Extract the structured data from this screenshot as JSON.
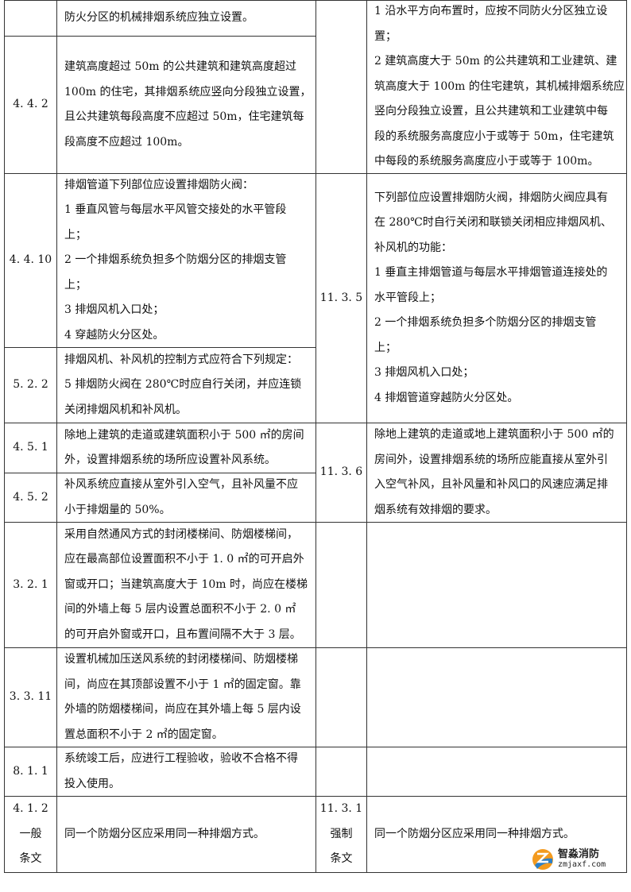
{
  "table": {
    "cells": [
      {
        "lines": []
      },
      {
        "lines": [
          "防火分区的机械排烟系统应独立设置。"
        ]
      },
      {
        "lines": []
      },
      {
        "lines": [
          "1 沿水平方向布置时，应按不同防火分区独立设",
          "置；",
          "2 建筑高度大于 50m 的公共建筑和工业建筑、建",
          "筑高度大于 100m 的住宅建筑，其机械排烟系统应",
          "竖向分段独立设置，且公共建筑和工业建筑中每",
          "段的系统服务高度应小于或等于 50m，住宅建筑",
          "中每段的系统服务高度应小于或等于 100m。"
        ]
      },
      {
        "lines": [
          "4. 4. 2"
        ]
      },
      {
        "lines": [
          "建筑高度超过 50m 的公共建筑和建筑高度超过",
          "100m 的住宅，其排烟系统应竖向分段独立设置，",
          "且公共建筑每段高度不应超过 50m，住宅建筑每",
          "段高度不应超过 100m。"
        ]
      },
      {
        "lines": [
          "4. 4. 10"
        ]
      },
      {
        "lines": [
          "排烟管道下列部位应设置排烟防火阀：",
          "1 垂直风管与每层水平风管交接处的水平管段",
          "上；",
          "2 一个排烟系统负担多个防烟分区的排烟支管",
          "上；",
          "3 排烟风机入口处；",
          "4 穿越防火分区处。"
        ]
      },
      {
        "lines": [
          "11. 3. 5"
        ]
      },
      {
        "lines": [
          "下列部位应设置排烟防火阀，排烟防火阀应具有",
          "在 280℃时自行关闭和联锁关闭相应排烟风机、",
          "补风机的功能：",
          "1 垂直主排烟管道与每层水平排烟管道连接处的",
          "水平管段上；",
          "2 一个排烟系统负担多个防烟分区的排烟支管",
          "上；",
          "3 排烟风机入口处；",
          "4 排烟管道穿越防火分区处。"
        ]
      },
      {
        "lines": [
          "5. 2. 2"
        ]
      },
      {
        "lines": [
          "排烟风机、补风机的控制方式应符合下列规定：",
          "5 排烟防火阀在 280℃时应自行关闭，并应连锁",
          "关闭排烟风机和补风机。"
        ]
      },
      {
        "lines": [
          "4. 5. 1"
        ]
      },
      {
        "lines": [
          "除地上建筑的走道或建筑面积小于 500 ㎡的房间",
          "外，设置排烟系统的场所应设置补风系统。"
        ]
      },
      {
        "lines": [
          "11. 3. 6"
        ]
      },
      {
        "lines": [
          "除地上建筑的走道或地上建筑面积小于 500 ㎡的",
          "房间外，设置排烟系统的场所应能直接从室外引",
          "入空气补风，且补风量和补风口的风速应满足排",
          "烟系统有效排烟的要求。"
        ]
      },
      {
        "lines": [
          "4. 5. 2"
        ]
      },
      {
        "lines": [
          "补风系统应直接从室外引入空气，且补风量不应",
          "小于排烟量的 50%。"
        ]
      },
      {
        "lines": [
          "3. 2. 1"
        ]
      },
      {
        "lines": [
          "采用自然通风方式的封闭楼梯间、防烟楼梯间，",
          "应在最高部位设置面积不小于 1. 0 ㎡的可开启外",
          "窗或开口；当建筑高度大于 10m 时，尚应在楼梯",
          "间的外墙上每 5 层内设置总面积不小于 2. 0 ㎡",
          "的可开启外窗或开口，且布置间隔不大于 3 层。"
        ]
      },
      {
        "lines": []
      },
      {
        "lines": []
      },
      {
        "lines": [
          "3. 3. 11"
        ]
      },
      {
        "lines": [
          "设置机械加压送风系统的封闭楼梯间、防烟楼梯",
          "间，尚应在其顶部设置不小于 1 ㎡的固定窗。靠",
          "外墙的防烟楼梯间，尚应在其外墙上每 5 层内设",
          "置总面积不小于 2 ㎡的固定窗。"
        ]
      },
      {
        "lines": []
      },
      {
        "lines": []
      },
      {
        "lines": [
          "8. 1. 1"
        ]
      },
      {
        "lines": [
          "系统竣工后，应进行工程验收，验收不合格不得",
          "投入使用。"
        ]
      },
      {
        "lines": []
      },
      {
        "lines": []
      },
      {
        "lines": [
          "4. 1. 2",
          "一般",
          "条文"
        ]
      },
      {
        "lines": [
          "同一个防烟分区应采用同一种排烟方式。"
        ]
      },
      {
        "lines": [
          "11. 3. 1",
          "强制",
          "条文"
        ]
      },
      {
        "lines": [
          "同一个防烟分区应采用同一种排烟方式。"
        ]
      }
    ]
  },
  "watermark": {
    "name_cn": "智淼消防",
    "site": "zmjaxf.com",
    "colors": {
      "orange": "#f39a1e",
      "blue": "#2a7fc9"
    }
  }
}
